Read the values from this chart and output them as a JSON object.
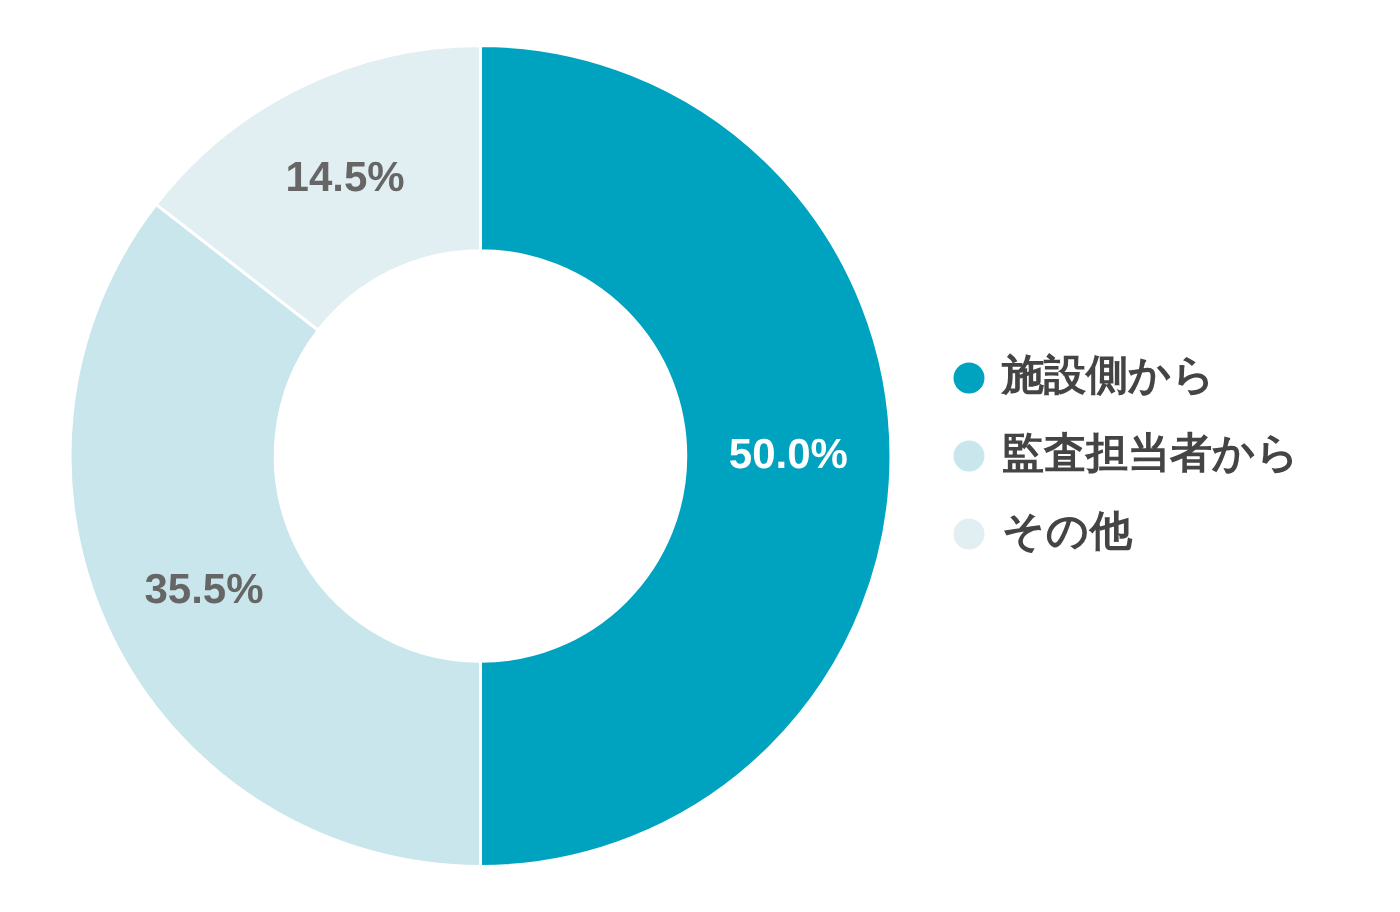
{
  "chart_data": {
    "type": "donut",
    "categories": [
      "施設側から",
      "監査担当者から",
      "その他"
    ],
    "values": [
      50.0,
      35.5,
      14.5
    ],
    "colors": [
      "#00a3bf",
      "#c9e6ec",
      "#e1eff3"
    ],
    "value_labels": [
      "50.0%",
      "35.5%",
      "14.5%"
    ],
    "legend": "right"
  }
}
